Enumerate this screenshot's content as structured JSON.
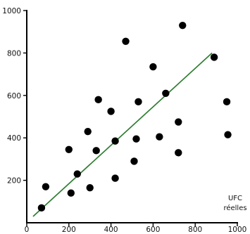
{
  "chart_data": {
    "type": "scatter",
    "title": "",
    "xlabel_lines": [
      "UFC",
      "réelles"
    ],
    "ylabel": "",
    "xlim": [
      0,
      1000
    ],
    "ylim": [
      0,
      1000
    ],
    "x_ticks": [
      0,
      200,
      400,
      600,
      800,
      1000
    ],
    "y_ticks": [
      200,
      400,
      600,
      800,
      1000
    ],
    "grid": false,
    "colors": {
      "points": "#000000",
      "trendline": "#2e7d32",
      "axes": "#000000"
    },
    "points": [
      {
        "x": 70,
        "y": 70
      },
      {
        "x": 90,
        "y": 170
      },
      {
        "x": 200,
        "y": 345
      },
      {
        "x": 210,
        "y": 140
      },
      {
        "x": 240,
        "y": 230
      },
      {
        "x": 290,
        "y": 430
      },
      {
        "x": 300,
        "y": 165
      },
      {
        "x": 330,
        "y": 340
      },
      {
        "x": 340,
        "y": 580
      },
      {
        "x": 400,
        "y": 525
      },
      {
        "x": 420,
        "y": 385
      },
      {
        "x": 420,
        "y": 210
      },
      {
        "x": 470,
        "y": 855
      },
      {
        "x": 510,
        "y": 290
      },
      {
        "x": 520,
        "y": 395
      },
      {
        "x": 530,
        "y": 570
      },
      {
        "x": 600,
        "y": 735
      },
      {
        "x": 630,
        "y": 405
      },
      {
        "x": 660,
        "y": 610
      },
      {
        "x": 720,
        "y": 475
      },
      {
        "x": 720,
        "y": 330
      },
      {
        "x": 740,
        "y": 930
      },
      {
        "x": 890,
        "y": 780
      },
      {
        "x": 950,
        "y": 570
      },
      {
        "x": 955,
        "y": 415
      }
    ],
    "trendline": {
      "x": [
        30,
        880
      ],
      "y": [
        30,
        800
      ]
    }
  }
}
